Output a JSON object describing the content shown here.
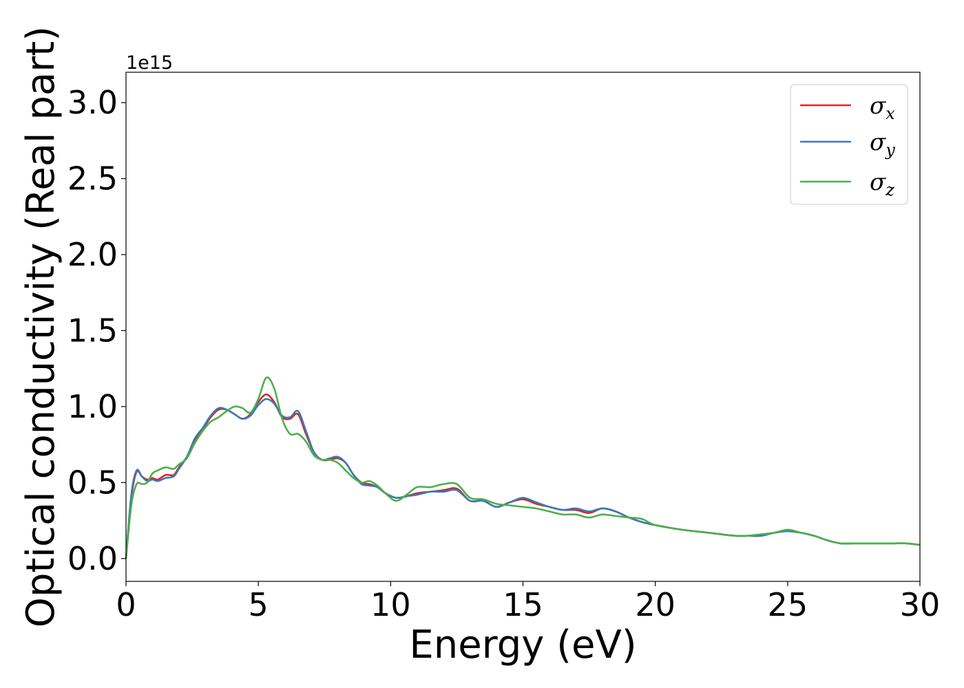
{
  "chart_data": {
    "type": "line",
    "title": "",
    "xlabel": "Energy (eV)",
    "ylabel": "Optical conductivity (Real part)",
    "y_offset_label": "1e15",
    "xlim": [
      0,
      30
    ],
    "ylim": [
      -0.15,
      3.2
    ],
    "xticks": [
      0,
      5,
      10,
      15,
      20,
      25,
      30
    ],
    "xtick_labels": [
      "0",
      "5",
      "10",
      "15",
      "20",
      "25",
      "30"
    ],
    "yticks": [
      0.0,
      0.5,
      1.0,
      1.5,
      2.0,
      2.5,
      3.0
    ],
    "ytick_labels": [
      "0.0",
      "0.5",
      "1.0",
      "1.5",
      "2.0",
      "2.5",
      "3.0"
    ],
    "grid": false,
    "legend_position": "top-right",
    "series": [
      {
        "name": "σx",
        "legend_main": "σ",
        "legend_sub": "x",
        "color": "#d62728",
        "x": [
          0,
          0.2,
          0.4,
          0.6,
          0.8,
          1.0,
          1.2,
          1.5,
          1.8,
          2.0,
          2.3,
          2.6,
          2.9,
          3.2,
          3.5,
          3.8,
          4.1,
          4.4,
          4.7,
          5.0,
          5.3,
          5.6,
          5.9,
          6.2,
          6.5,
          6.8,
          7.1,
          7.4,
          7.7,
          8.0,
          8.3,
          8.6,
          8.9,
          9.2,
          9.5,
          9.8,
          10.2,
          10.6,
          11.0,
          11.5,
          12.0,
          12.5,
          13.0,
          13.5,
          14.0,
          14.5,
          15.0,
          15.5,
          16.0,
          16.5,
          17.0,
          17.5,
          18.0,
          18.5,
          19.0,
          19.5,
          20.0,
          21.0,
          22.0,
          23.0,
          23.5,
          24.0,
          24.5,
          25.0,
          25.5,
          26.0,
          26.5,
          27.0,
          27.5,
          28.0,
          28.5,
          29.0,
          29.5,
          30.0
        ],
        "y": [
          0.0,
          0.4,
          0.57,
          0.54,
          0.52,
          0.53,
          0.52,
          0.55,
          0.55,
          0.6,
          0.67,
          0.78,
          0.85,
          0.93,
          0.98,
          0.98,
          0.95,
          0.92,
          0.95,
          1.03,
          1.08,
          1.03,
          0.93,
          0.92,
          0.95,
          0.82,
          0.7,
          0.65,
          0.65,
          0.66,
          0.63,
          0.55,
          0.5,
          0.49,
          0.47,
          0.43,
          0.4,
          0.41,
          0.43,
          0.44,
          0.45,
          0.46,
          0.38,
          0.38,
          0.34,
          0.37,
          0.39,
          0.36,
          0.34,
          0.32,
          0.32,
          0.3,
          0.33,
          0.31,
          0.27,
          0.24,
          0.22,
          0.19,
          0.17,
          0.15,
          0.15,
          0.15,
          0.17,
          0.18,
          0.17,
          0.15,
          0.12,
          0.1,
          0.1,
          0.1,
          0.1,
          0.1,
          0.1,
          0.09
        ]
      },
      {
        "name": "σy",
        "legend_main": "σ",
        "legend_sub": "y",
        "color": "#3a7ab8",
        "x": [
          0,
          0.2,
          0.4,
          0.6,
          0.8,
          1.0,
          1.2,
          1.5,
          1.8,
          2.0,
          2.3,
          2.6,
          2.9,
          3.2,
          3.5,
          3.8,
          4.1,
          4.4,
          4.7,
          5.0,
          5.3,
          5.6,
          5.9,
          6.2,
          6.5,
          6.8,
          7.1,
          7.4,
          7.7,
          8.0,
          8.3,
          8.6,
          8.9,
          9.2,
          9.5,
          9.8,
          10.2,
          10.6,
          11.0,
          11.5,
          12.0,
          12.5,
          13.0,
          13.5,
          14.0,
          14.5,
          15.0,
          15.5,
          16.0,
          16.5,
          17.0,
          17.5,
          18.0,
          18.5,
          19.0,
          19.5,
          20.0,
          21.0,
          22.0,
          23.0,
          23.5,
          24.0,
          24.5,
          25.0,
          25.5,
          26.0,
          26.5,
          27.0,
          27.5,
          28.0,
          28.5,
          29.0,
          29.5,
          30.0
        ],
        "y": [
          0.0,
          0.42,
          0.58,
          0.54,
          0.51,
          0.52,
          0.51,
          0.53,
          0.54,
          0.59,
          0.67,
          0.79,
          0.86,
          0.94,
          0.99,
          0.98,
          0.95,
          0.92,
          0.94,
          1.01,
          1.05,
          1.02,
          0.94,
          0.93,
          0.97,
          0.84,
          0.7,
          0.65,
          0.66,
          0.67,
          0.63,
          0.55,
          0.49,
          0.48,
          0.47,
          0.43,
          0.4,
          0.41,
          0.42,
          0.44,
          0.44,
          0.45,
          0.38,
          0.38,
          0.34,
          0.37,
          0.4,
          0.37,
          0.34,
          0.32,
          0.33,
          0.31,
          0.33,
          0.31,
          0.27,
          0.24,
          0.22,
          0.19,
          0.17,
          0.15,
          0.15,
          0.15,
          0.17,
          0.18,
          0.17,
          0.15,
          0.12,
          0.1,
          0.1,
          0.1,
          0.1,
          0.1,
          0.1,
          0.09
        ]
      },
      {
        "name": "σz",
        "legend_main": "σ",
        "legend_sub": "z",
        "color": "#4daf4a",
        "x": [
          0,
          0.2,
          0.4,
          0.6,
          0.8,
          1.0,
          1.2,
          1.5,
          1.8,
          2.0,
          2.3,
          2.6,
          2.9,
          3.2,
          3.5,
          3.8,
          4.1,
          4.4,
          4.7,
          5.0,
          5.3,
          5.6,
          5.9,
          6.2,
          6.5,
          6.8,
          7.1,
          7.4,
          7.7,
          8.0,
          8.3,
          8.6,
          8.9,
          9.2,
          9.5,
          9.8,
          10.2,
          10.6,
          11.0,
          11.5,
          12.0,
          12.5,
          13.0,
          13.5,
          14.0,
          14.5,
          15.0,
          15.5,
          16.0,
          16.5,
          17.0,
          17.5,
          18.0,
          18.5,
          19.0,
          19.5,
          20.0,
          21.0,
          22.0,
          23.0,
          23.5,
          24.0,
          24.5,
          25.0,
          25.5,
          26.0,
          26.5,
          27.0,
          27.5,
          28.0,
          28.5,
          29.0,
          29.5,
          30.0
        ],
        "y": [
          0.0,
          0.35,
          0.49,
          0.49,
          0.5,
          0.56,
          0.58,
          0.6,
          0.59,
          0.62,
          0.66,
          0.76,
          0.84,
          0.9,
          0.93,
          0.97,
          1.0,
          0.99,
          0.96,
          1.05,
          1.19,
          1.12,
          0.92,
          0.82,
          0.82,
          0.77,
          0.68,
          0.65,
          0.65,
          0.63,
          0.58,
          0.53,
          0.5,
          0.51,
          0.48,
          0.43,
          0.38,
          0.42,
          0.47,
          0.47,
          0.49,
          0.49,
          0.4,
          0.39,
          0.36,
          0.35,
          0.34,
          0.33,
          0.31,
          0.29,
          0.29,
          0.27,
          0.29,
          0.28,
          0.27,
          0.26,
          0.22,
          0.19,
          0.17,
          0.15,
          0.15,
          0.16,
          0.17,
          0.19,
          0.17,
          0.15,
          0.12,
          0.1,
          0.1,
          0.1,
          0.1,
          0.1,
          0.1,
          0.09
        ]
      }
    ]
  }
}
